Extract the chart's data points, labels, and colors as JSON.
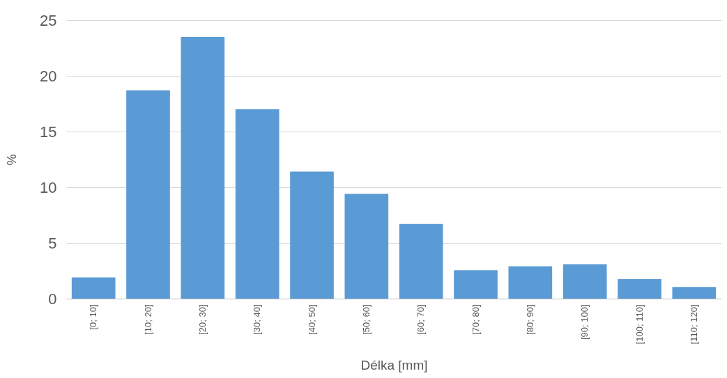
{
  "chart_data": {
    "type": "bar",
    "xlabel": "Délka [mm]",
    "ylabel": "%",
    "categories": [
      "[0; 10]",
      "[10; 20]",
      "[20; 30]",
      "[30; 40]",
      "[40; 50]",
      "[50; 60]",
      "[60; 70]",
      "[70; 80]",
      "[80; 90]",
      "[90; 100]",
      "[100; 110]",
      "[110; 120]"
    ],
    "values": [
      1.9,
      18.7,
      23.5,
      17.0,
      11.4,
      9.4,
      6.7,
      2.55,
      2.9,
      3.1,
      1.75,
      1.05
    ],
    "color": "#5b9bd5",
    "ylim": [
      0,
      25
    ],
    "yticks": [
      0,
      5,
      10,
      15,
      20,
      25
    ],
    "grid": "y"
  }
}
